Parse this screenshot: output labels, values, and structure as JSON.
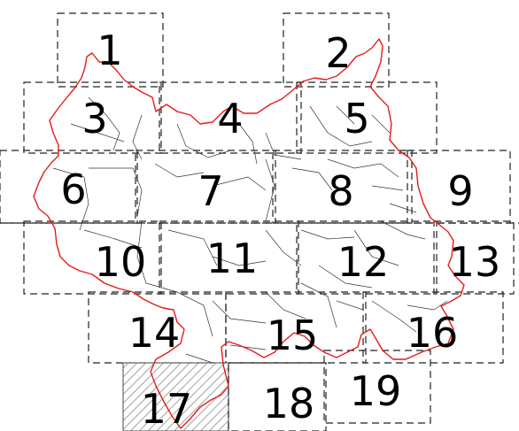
{
  "map": {
    "boundary_color": "#e41c1c",
    "tiles": [
      {
        "label": "1"
      },
      {
        "label": "2"
      },
      {
        "label": "3"
      },
      {
        "label": "4"
      },
      {
        "label": "5"
      },
      {
        "label": "6"
      },
      {
        "label": "7"
      },
      {
        "label": "8"
      },
      {
        "label": "9"
      },
      {
        "label": "10"
      },
      {
        "label": "11"
      },
      {
        "label": "12"
      },
      {
        "label": "13"
      },
      {
        "label": "14"
      },
      {
        "label": "15"
      },
      {
        "label": "16"
      },
      {
        "label": "17",
        "hatched": true
      },
      {
        "label": "18"
      },
      {
        "label": "19"
      }
    ]
  }
}
